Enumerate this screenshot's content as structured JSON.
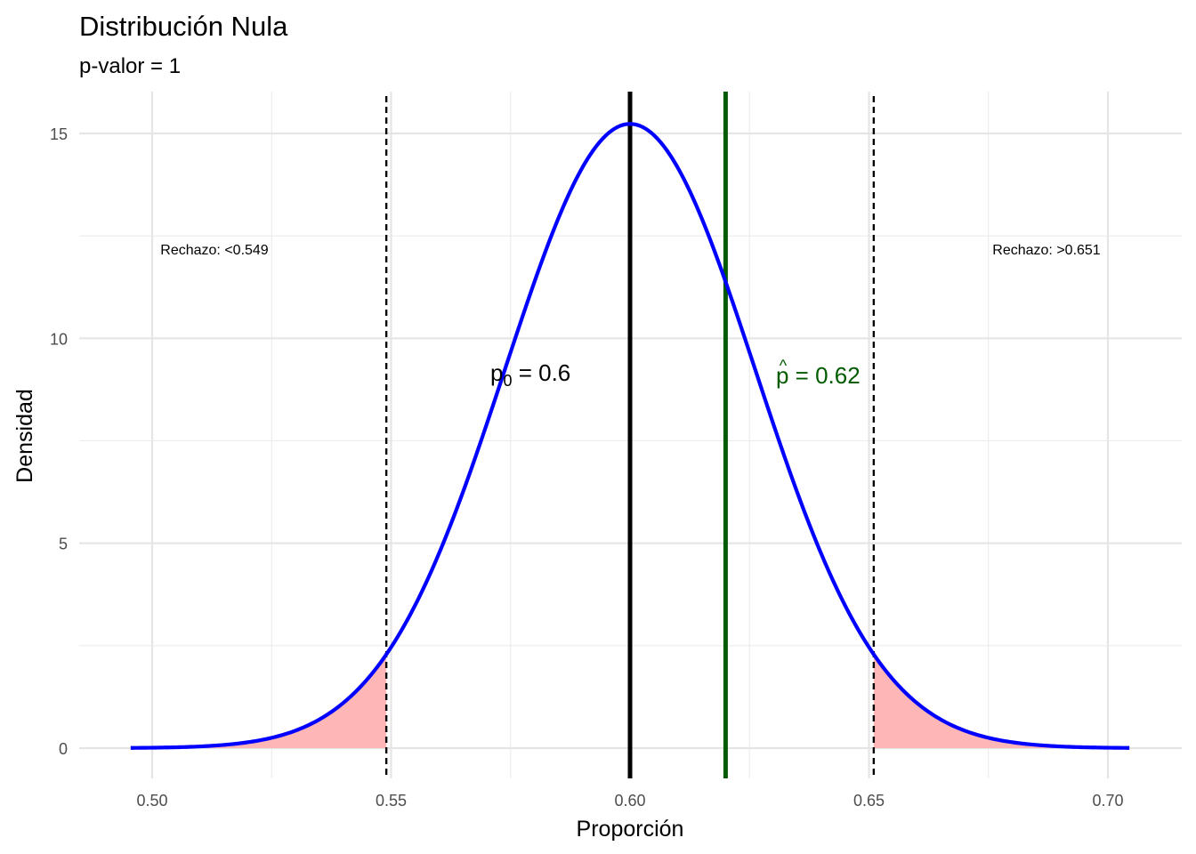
{
  "chart_data": {
    "type": "area",
    "title": "Distribución Nula",
    "subtitle": "p-valor = 1",
    "xlabel": "Proporción",
    "ylabel": "Densidad",
    "xlim": [
      0.4955,
      0.7045
    ],
    "ylim": [
      0,
      15.2
    ],
    "x_ticks": [
      0.5,
      0.55,
      0.6,
      0.65,
      0.7
    ],
    "x_tick_labels": [
      "0.50",
      "0.55",
      "0.60",
      "0.65",
      "0.70"
    ],
    "y_ticks": [
      0,
      5,
      10,
      15
    ],
    "y_tick_labels": [
      "0",
      "5",
      "10",
      "15"
    ],
    "grid": true,
    "density": {
      "mean": 0.6,
      "sd": 0.02619,
      "x_range": [
        0.4955,
        0.7045
      ],
      "color": "#0000ff"
    },
    "rejection_regions": [
      {
        "side": "lower",
        "bound": 0.549,
        "label": "Rechazo: <0.549",
        "fill": "#ffb6b6"
      },
      {
        "side": "upper",
        "bound": 0.651,
        "label": "Rechazo: >0.651",
        "fill": "#ffb6b6"
      }
    ],
    "reference_lines": [
      {
        "name": "p0",
        "x": 0.6,
        "color": "#000000",
        "label_main": "p",
        "label_sub": "0",
        "label_value": " = 0.6"
      },
      {
        "name": "p_hat",
        "x": 0.62,
        "color": "#005a00",
        "label_main": "p",
        "label_hat": "^",
        "label_value": " = 0.62"
      }
    ]
  }
}
